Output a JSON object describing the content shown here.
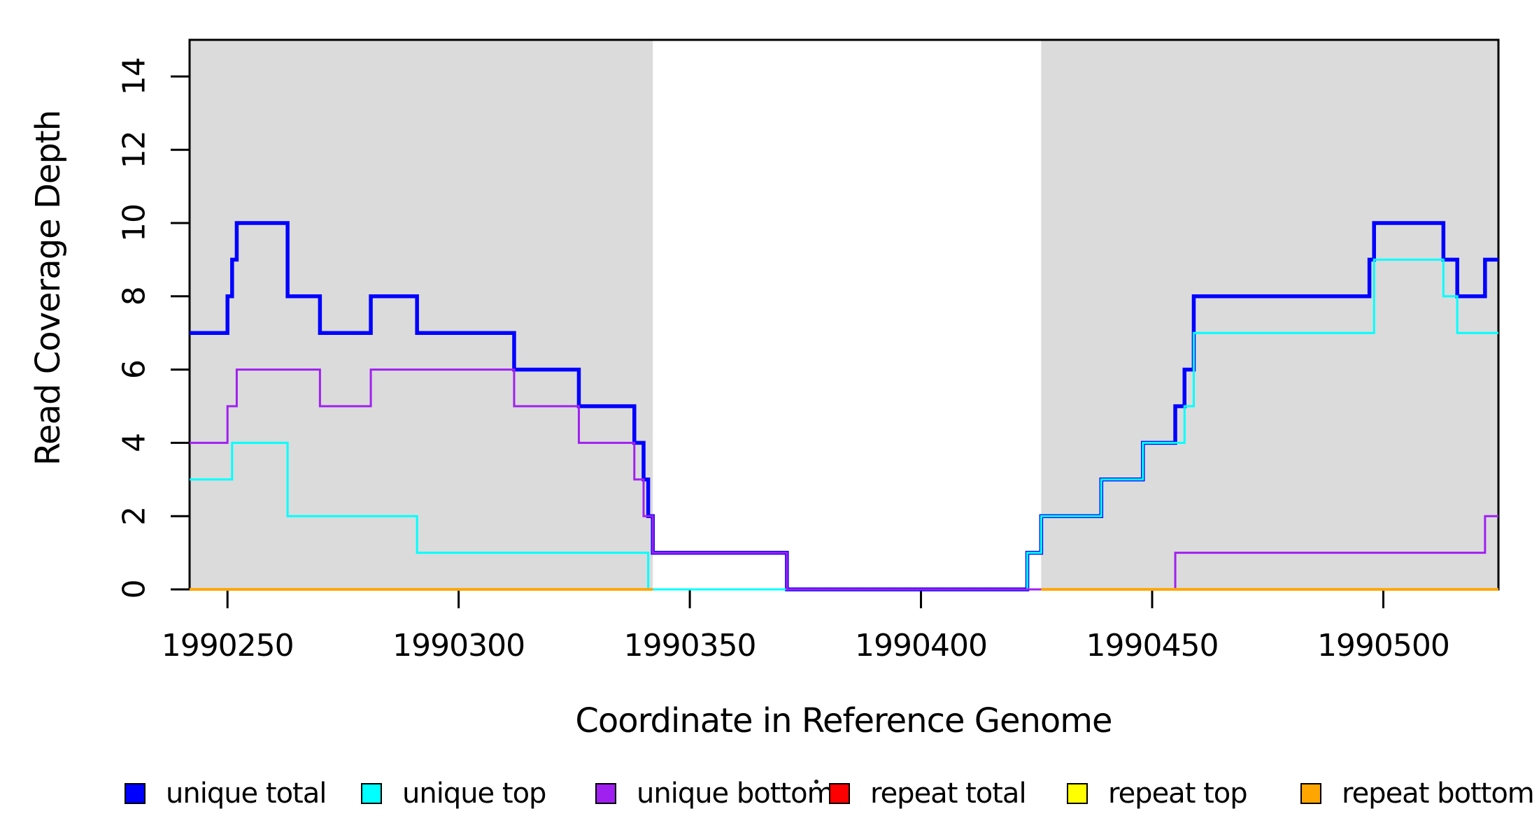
{
  "page": {
    "background": "#ffffff",
    "plot_border_color": "#000000",
    "shade_color": "#DBDBDB"
  },
  "chart_data": {
    "type": "line",
    "subtype": "step-post",
    "title": "",
    "xlabel": "Coordinate in Reference Genome",
    "ylabel": "Read Coverage Depth",
    "xlim": [
      1990241.8,
      1990524.9
    ],
    "ylim": [
      0,
      15
    ],
    "x_ticks": [
      "1990250",
      "1990300",
      "1990350",
      "1990400",
      "1990450",
      "1990500"
    ],
    "x_tick_values": [
      1990250,
      1990300,
      1990350,
      1990400,
      1990450,
      1990500
    ],
    "y_ticks": [
      "0",
      "2",
      "4",
      "6",
      "8",
      "10",
      "12",
      "14"
    ],
    "y_tick_values": [
      0,
      2,
      4,
      6,
      8,
      10,
      12,
      14
    ],
    "grid": false,
    "legend_position": "bottom",
    "shaded_regions": [
      {
        "name": "repeat-region-left",
        "x0": 1990241.8,
        "x1": 1990342,
        "color": "#DBDBDB"
      },
      {
        "name": "repeat-region-right",
        "x0": 1990426,
        "x1": 1990524.9,
        "color": "#DBDBDB"
      }
    ],
    "series": [
      {
        "name": "unique total",
        "color": "#0000FF",
        "width": 5.5,
        "segments": [
          {
            "steps": [
              [
                1990241.8,
                7
              ],
              [
                1990250,
                8
              ],
              [
                1990251,
                9
              ],
              [
                1990252,
                10
              ],
              [
                1990263,
                8
              ],
              [
                1990270,
                7
              ],
              [
                1990281,
                8
              ],
              [
                1990291,
                7
              ],
              [
                1990312,
                6
              ],
              [
                1990326,
                5
              ],
              [
                1990338,
                4
              ],
              [
                1990340,
                3
              ],
              [
                1990341,
                2
              ],
              [
                1990342,
                1
              ],
              [
                1990371,
                0
              ],
              [
                1990423,
                1
              ],
              [
                1990426,
                2
              ],
              [
                1990439,
                3
              ],
              [
                1990448,
                4
              ],
              [
                1990455,
                5
              ],
              [
                1990457,
                6
              ],
              [
                1990459,
                8
              ],
              [
                1990497,
                9
              ],
              [
                1990498,
                10
              ],
              [
                1990513,
                9
              ],
              [
                1990516,
                8
              ],
              [
                1990522,
                9
              ]
            ],
            "xend": 1990524.9
          }
        ]
      },
      {
        "name": "unique top",
        "color": "#00FFFF",
        "width": 3,
        "segments": [
          {
            "steps": [
              [
                1990241.8,
                3
              ],
              [
                1990251,
                4
              ],
              [
                1990263,
                2
              ],
              [
                1990291,
                1
              ],
              [
                1990341,
                0
              ],
              [
                1990423,
                1
              ],
              [
                1990426,
                2
              ],
              [
                1990439,
                3
              ],
              [
                1990448,
                4
              ],
              [
                1990457,
                5
              ],
              [
                1990459,
                7
              ],
              [
                1990498,
                9
              ],
              [
                1990513,
                8
              ],
              [
                1990516,
                7
              ]
            ],
            "xend": 1990524.9
          }
        ]
      },
      {
        "name": "unique bottom",
        "color": "#A020F0",
        "width": 3,
        "segments": [
          {
            "steps": [
              [
                1990241.8,
                4
              ],
              [
                1990250,
                5
              ],
              [
                1990252,
                6
              ],
              [
                1990270,
                5
              ],
              [
                1990281,
                6
              ],
              [
                1990312,
                5
              ],
              [
                1990326,
                4
              ],
              [
                1990338,
                3
              ],
              [
                1990340,
                2
              ],
              [
                1990342,
                1
              ],
              [
                1990371,
                0
              ],
              [
                1990455,
                1
              ],
              [
                1990522,
                2
              ]
            ],
            "xend": 1990524.9
          }
        ]
      },
      {
        "name": "repeat total",
        "color": "#FF0000",
        "width": 3.5,
        "segments": [
          {
            "steps": [
              [
                1990241.8,
                0
              ]
            ],
            "xend": 1990342
          },
          {
            "steps": [
              [
                1990426,
                0
              ]
            ],
            "xend": 1990524.9
          }
        ]
      },
      {
        "name": "repeat top",
        "color": "#FFFF00",
        "width": 3.5,
        "segments": [
          {
            "steps": [
              [
                1990241.8,
                0
              ]
            ],
            "xend": 1990342
          },
          {
            "steps": [
              [
                1990426,
                0
              ]
            ],
            "xend": 1990524.9
          }
        ]
      },
      {
        "name": "repeat bottom",
        "color": "#FFA500",
        "width": 3.5,
        "segments": [
          {
            "steps": [
              [
                1990241.8,
                0
              ]
            ],
            "xend": 1990342
          },
          {
            "steps": [
              [
                1990426,
                0
              ]
            ],
            "xend": 1990524.9
          }
        ]
      }
    ],
    "legend": {
      "items": [
        {
          "label": "unique total",
          "color": "#0000FF"
        },
        {
          "label": "unique top",
          "color": "#00FFFF"
        },
        {
          "label": "unique bottom",
          "color": "#A020F0"
        },
        {
          "label": "repeat total",
          "color": "#FF0000"
        },
        {
          "label": "repeat top",
          "color": "#FFFF00"
        },
        {
          "label": "repeat bottom",
          "color": "#FFA500"
        }
      ]
    }
  }
}
